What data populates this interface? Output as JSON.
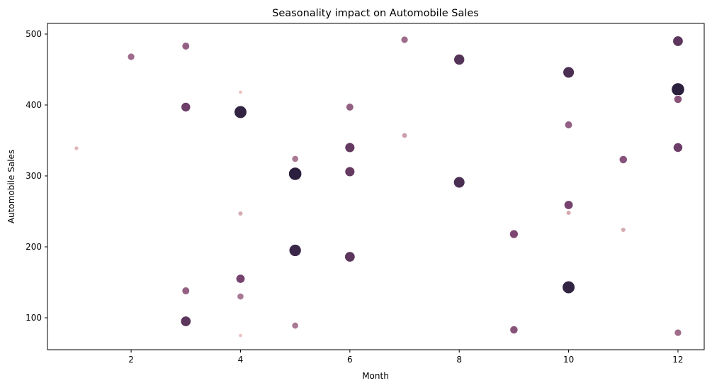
{
  "chart_data": {
    "type": "scatter",
    "title": "Seasonality impact on Automobile Sales",
    "xlabel": "Month",
    "ylabel": "Automobile Sales",
    "xlim": [
      0.47,
      12.48
    ],
    "ylim": [
      55,
      515
    ],
    "xticks": [
      2,
      4,
      6,
      8,
      10,
      12
    ],
    "yticks": [
      100,
      200,
      300,
      400,
      500
    ],
    "grid": false,
    "legend": "none",
    "color_scale": [
      "#ebc3c0",
      "#2a1f3d"
    ],
    "size_range_note": "marker size and color encode an unlabeled third variable",
    "points": [
      {
        "x": 1,
        "y": 339,
        "w": 0.05
      },
      {
        "x": 2,
        "y": 468,
        "w": 0.35
      },
      {
        "x": 3,
        "y": 483,
        "w": 0.4
      },
      {
        "x": 3,
        "y": 397,
        "w": 0.6
      },
      {
        "x": 3,
        "y": 138,
        "w": 0.4
      },
      {
        "x": 3,
        "y": 95,
        "w": 0.7
      },
      {
        "x": 4,
        "y": 418,
        "w": 0.0
      },
      {
        "x": 4,
        "y": 390,
        "w": 0.95
      },
      {
        "x": 4,
        "y": 247,
        "w": 0.1
      },
      {
        "x": 4,
        "y": 155,
        "w": 0.55
      },
      {
        "x": 4,
        "y": 130,
        "w": 0.3
      },
      {
        "x": 4,
        "y": 75,
        "w": 0.0
      },
      {
        "x": 5,
        "y": 324,
        "w": 0.3
      },
      {
        "x": 5,
        "y": 303,
        "w": 1.0
      },
      {
        "x": 5,
        "y": 195,
        "w": 0.9
      },
      {
        "x": 5,
        "y": 89,
        "w": 0.3
      },
      {
        "x": 6,
        "y": 397,
        "w": 0.4
      },
      {
        "x": 6,
        "y": 340,
        "w": 0.65
      },
      {
        "x": 6,
        "y": 306,
        "w": 0.65
      },
      {
        "x": 6,
        "y": 186,
        "w": 0.7
      },
      {
        "x": 7,
        "y": 492,
        "w": 0.35
      },
      {
        "x": 7,
        "y": 357,
        "w": 0.15
      },
      {
        "x": 8,
        "y": 464,
        "w": 0.75
      },
      {
        "x": 8,
        "y": 291,
        "w": 0.8
      },
      {
        "x": 9,
        "y": 218,
        "w": 0.5
      },
      {
        "x": 9,
        "y": 83,
        "w": 0.45
      },
      {
        "x": 10,
        "y": 446,
        "w": 0.8
      },
      {
        "x": 10,
        "y": 372,
        "w": 0.4
      },
      {
        "x": 10,
        "y": 259,
        "w": 0.55
      },
      {
        "x": 10,
        "y": 248,
        "w": 0.1
      },
      {
        "x": 10,
        "y": 143,
        "w": 0.95
      },
      {
        "x": 11,
        "y": 323,
        "w": 0.45
      },
      {
        "x": 11,
        "y": 224,
        "w": 0.1
      },
      {
        "x": 12,
        "y": 490,
        "w": 0.7
      },
      {
        "x": 12,
        "y": 422,
        "w": 1.0
      },
      {
        "x": 12,
        "y": 408,
        "w": 0.45
      },
      {
        "x": 12,
        "y": 340,
        "w": 0.6
      },
      {
        "x": 12,
        "y": 79,
        "w": 0.35
      }
    ]
  }
}
